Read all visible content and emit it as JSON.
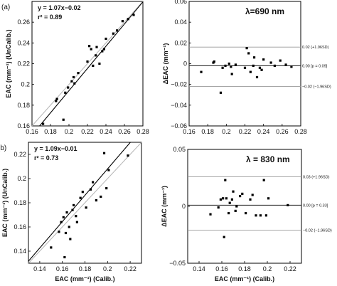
{
  "chart_data": [
    {
      "type": "scatter",
      "panel_label": "(a)",
      "equation": "y = 1.07x−0.02",
      "r2_text": "r² = 0.89",
      "ylabel": "EAC (mm⁻¹) (UnCalib.)",
      "xlabel": "",
      "xlim": [
        0.16,
        0.28
      ],
      "ylim": [
        0.16,
        0.28
      ],
      "xticks": [
        "0.16",
        "0.18",
        "0.2",
        "0.22",
        "0.24",
        "0.26",
        "0.28"
      ],
      "yticks": [
        "0.16",
        "0.18",
        "0.2",
        "0.22",
        "0.24",
        "0.26"
      ],
      "fit": {
        "slope": 1.07,
        "intercept": -0.02
      },
      "points": [
        [
          0.172,
          0.162
        ],
        [
          0.186,
          0.184
        ],
        [
          0.187,
          0.186
        ],
        [
          0.194,
          0.166
        ],
        [
          0.196,
          0.192
        ],
        [
          0.199,
          0.197
        ],
        [
          0.203,
          0.203
        ],
        [
          0.205,
          0.207
        ],
        [
          0.206,
          0.201
        ],
        [
          0.21,
          0.211
        ],
        [
          0.22,
          0.222
        ],
        [
          0.222,
          0.237
        ],
        [
          0.224,
          0.234
        ],
        [
          0.226,
          0.218
        ],
        [
          0.229,
          0.228
        ],
        [
          0.23,
          0.236
        ],
        [
          0.233,
          0.22
        ],
        [
          0.236,
          0.232
        ],
        [
          0.238,
          0.234
        ],
        [
          0.24,
          0.244
        ],
        [
          0.248,
          0.249
        ],
        [
          0.252,
          0.252
        ],
        [
          0.258,
          0.261
        ],
        [
          0.264,
          0.263
        ],
        [
          0.27,
          0.267
        ]
      ]
    },
    {
      "type": "scatter",
      "panel_label": "",
      "wavelength": "λ=690 nm",
      "ylabel": "ΔEAC (mm⁻¹)",
      "xlabel": "",
      "xlim": [
        0.16,
        0.28
      ],
      "ylim": [
        -0.06,
        0.06
      ],
      "xticks": [
        "0.16",
        "0.18",
        "0.2",
        "0.22",
        "0.24",
        "0.26",
        "0.28"
      ],
      "yticks": [
        "0.06",
        "0.04",
        "0.02",
        "0",
        "−0.02",
        "−0.04",
        "−0.06"
      ],
      "hlines": [
        {
          "y": 0.016,
          "label": "0.02 (+1.96SD)"
        },
        {
          "y": -0.002,
          "label": "0.00 [p = 0.09]"
        },
        {
          "y": -0.022,
          "label": "−0.02 (−1.96SD)"
        }
      ],
      "points": [
        [
          0.173,
          -0.008
        ],
        [
          0.186,
          0.001
        ],
        [
          0.187,
          0.002
        ],
        [
          0.194,
          -0.028
        ],
        [
          0.196,
          -0.004
        ],
        [
          0.199,
          -0.002
        ],
        [
          0.203,
          0.0
        ],
        [
          0.205,
          -0.003
        ],
        [
          0.206,
          -0.01
        ],
        [
          0.21,
          -0.001
        ],
        [
          0.22,
          -0.004
        ],
        [
          0.222,
          0.015
        ],
        [
          0.224,
          0.01
        ],
        [
          0.226,
          -0.008
        ],
        [
          0.229,
          -0.002
        ],
        [
          0.23,
          0.006
        ],
        [
          0.233,
          -0.013
        ],
        [
          0.236,
          -0.004
        ],
        [
          0.238,
          -0.006
        ],
        [
          0.24,
          0.004
        ],
        [
          0.248,
          0.001
        ],
        [
          0.252,
          -0.002
        ],
        [
          0.258,
          0.003
        ],
        [
          0.264,
          -0.001
        ],
        [
          0.27,
          -0.003
        ]
      ]
    },
    {
      "type": "scatter",
      "panel_label": "(b)",
      "equation": "y = 1.09x−0.01",
      "r2_text": "r² = 0.73",
      "ylabel": "EAC (mm⁻¹) (UnCalib.)",
      "xlabel": "EAC (mm⁻¹) (Calib.)",
      "xlim": [
        0.13,
        0.23
      ],
      "ylim": [
        0.13,
        0.23
      ],
      "xticks": [
        "0.14",
        "0.16",
        "0.18",
        "0.2",
        "0.22"
      ],
      "yticks": [
        "0.14",
        "0.16",
        "0.18",
        "0.2",
        "0.22"
      ],
      "fit": {
        "slope": 1.09,
        "intercept": -0.01
      },
      "points": [
        [
          0.15,
          0.143
        ],
        [
          0.157,
          0.156
        ],
        [
          0.159,
          0.164
        ],
        [
          0.161,
          0.168
        ],
        [
          0.162,
          0.135
        ],
        [
          0.163,
          0.155
        ],
        [
          0.164,
          0.172
        ],
        [
          0.166,
          0.16
        ],
        [
          0.167,
          0.15
        ],
        [
          0.169,
          0.174
        ],
        [
          0.17,
          0.178
        ],
        [
          0.172,
          0.169
        ],
        [
          0.173,
          0.164
        ],
        [
          0.176,
          0.184
        ],
        [
          0.178,
          0.189
        ],
        [
          0.181,
          0.176
        ],
        [
          0.185,
          0.191
        ],
        [
          0.187,
          0.197
        ],
        [
          0.19,
          0.182
        ],
        [
          0.194,
          0.185
        ],
        [
          0.197,
          0.221
        ],
        [
          0.199,
          0.192
        ],
        [
          0.201,
          0.207
        ],
        [
          0.218,
          0.219
        ]
      ]
    },
    {
      "type": "scatter",
      "panel_label": "",
      "wavelength": "λ = 830 nm",
      "ylabel": "ΔEAC (mm⁻¹)",
      "xlabel": "EAC (mm⁻¹) (Calib.)",
      "xlim": [
        0.13,
        0.23
      ],
      "ylim": [
        -0.05,
        0.05
      ],
      "xticks": [
        "0.14",
        "0.16",
        "0.18",
        "0.2",
        "0.22"
      ],
      "yticks": [
        "0.05",
        "0",
        "−0.05"
      ],
      "hlines": [
        {
          "y": 0.026,
          "label": "0.03 (+1.96SD)"
        },
        {
          "y": 0.001,
          "label": "0.00 [p = 0.33]"
        },
        {
          "y": -0.021,
          "label": "−0.02 (−1.96SD)"
        }
      ],
      "points": [
        [
          0.15,
          -0.007
        ],
        [
          0.157,
          -0.001
        ],
        [
          0.159,
          0.006
        ],
        [
          0.161,
          0.007
        ],
        [
          0.162,
          -0.027
        ],
        [
          0.163,
          0.023
        ],
        [
          0.164,
          0.007
        ],
        [
          0.166,
          -0.006
        ],
        [
          0.167,
          0.003
        ],
        [
          0.169,
          0.006
        ],
        [
          0.17,
          0.013
        ],
        [
          0.172,
          -0.004
        ],
        [
          0.173,
          0.0
        ],
        [
          0.176,
          0.009
        ],
        [
          0.178,
          0.011
        ],
        [
          0.181,
          -0.006
        ],
        [
          0.185,
          0.006
        ],
        [
          0.187,
          0.01
        ],
        [
          0.19,
          -0.008
        ],
        [
          0.194,
          -0.008
        ],
        [
          0.197,
          0.023
        ],
        [
          0.199,
          -0.008
        ],
        [
          0.201,
          0.007
        ],
        [
          0.218,
          0.001
        ]
      ]
    }
  ]
}
